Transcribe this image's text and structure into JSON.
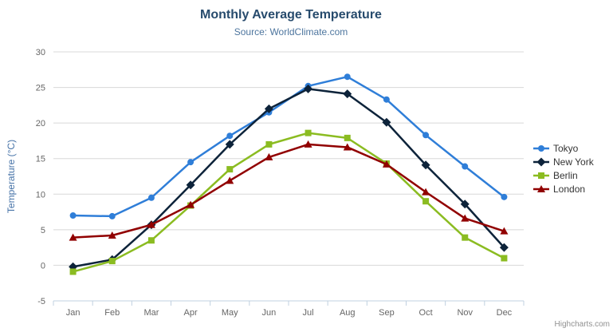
{
  "chart_data": {
    "type": "line",
    "title": "Monthly Average Temperature",
    "subtitle": "Source: WorldClimate.com",
    "xlabel": "",
    "ylabel": "Temperature (°C)",
    "ylim": [
      -5,
      30
    ],
    "ytick_interval": 5,
    "grid": true,
    "legend_position": "right",
    "categories": [
      "Jan",
      "Feb",
      "Mar",
      "Apr",
      "May",
      "Jun",
      "Jul",
      "Aug",
      "Sep",
      "Oct",
      "Nov",
      "Dec"
    ],
    "series": [
      {
        "name": "Tokyo",
        "color": "#2f7ed8",
        "marker": "circle",
        "values": [
          7.0,
          6.9,
          9.5,
          14.5,
          18.2,
          21.5,
          25.2,
          26.5,
          23.3,
          18.3,
          13.9,
          9.6
        ]
      },
      {
        "name": "New York",
        "color": "#0d233a",
        "marker": "diamond",
        "values": [
          -0.2,
          0.8,
          5.7,
          11.3,
          17.0,
          22.0,
          24.8,
          24.1,
          20.1,
          14.1,
          8.6,
          2.5
        ]
      },
      {
        "name": "Berlin",
        "color": "#8bbc21",
        "marker": "square",
        "values": [
          -0.9,
          0.6,
          3.5,
          8.4,
          13.5,
          17.0,
          18.6,
          17.9,
          14.3,
          9.0,
          3.9,
          1.0
        ]
      },
      {
        "name": "London",
        "color": "#910000",
        "marker": "triangle",
        "values": [
          3.9,
          4.2,
          5.7,
          8.5,
          11.9,
          15.2,
          17.0,
          16.6,
          14.2,
          10.3,
          6.6,
          4.8
        ]
      }
    ]
  },
  "style": {
    "title_color": "#274b6d",
    "subtitle_color": "#4d759e",
    "axis_title_color": "#4572a7",
    "axis_label_color": "#666666",
    "legend_text_color": "#333333",
    "grid_color": "#d8d8d8",
    "axis_line_color": "#c0d0e0",
    "menu_icon_color": "#666666",
    "credit_color": "#909090",
    "background": "#ffffff"
  },
  "export_menu": {
    "icon": "hamburger-menu-icon"
  },
  "credit": {
    "label": "Highcharts.com"
  }
}
